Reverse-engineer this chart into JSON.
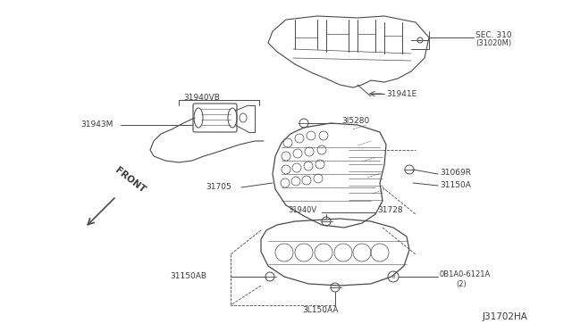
{
  "bg_color": "#ffffff",
  "line_color": "#4a4a4a",
  "text_color": "#3a3a3a",
  "diagram_id": "J31702HA",
  "figsize": [
    6.4,
    3.72
  ],
  "dpi": 100,
  "labels": {
    "SEC310_line1": "SEC. 310",
    "SEC310_line2": "(31020M)",
    "31941E": "31941E",
    "31940VB": "31940VB",
    "31943M": "31943M",
    "315280": "3l5280",
    "31705": "31705",
    "31069R": "31069R",
    "31150A": "31150A",
    "31940V": "31940V",
    "31728": "31728",
    "31150AB": "31150AB",
    "0B1A0": "0B1A0-6121A",
    "0B1A0_2": "(2)",
    "3L150AA": "3L150AA",
    "FRONT": "FRONT",
    "diagram_id": "J31702HA"
  }
}
